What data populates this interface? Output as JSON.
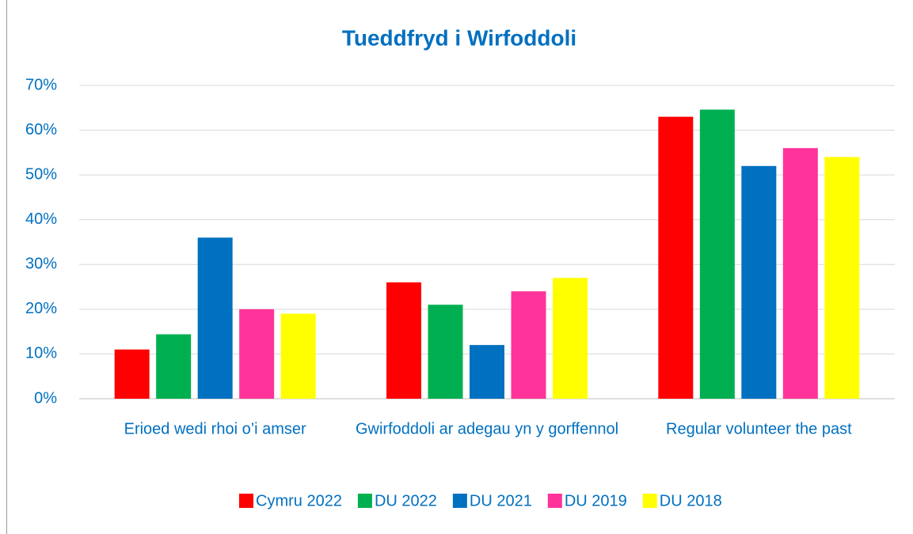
{
  "chart_data": {
    "type": "bar",
    "title": "Tueddfryd i Wirfoddoli",
    "categories": [
      "Erioed wedi rhoi o’i amser",
      "Gwirfoddoli ar adegau yn y gorffennol",
      "Regular volunteer  the past"
    ],
    "series": [
      {
        "name": "Cymru 2022",
        "color": "#ff0000",
        "values": [
          11,
          26,
          63
        ]
      },
      {
        "name": "DU 2022",
        "color": "#00b050",
        "values": [
          14.4,
          21,
          64.6
        ]
      },
      {
        "name": "DU 2021",
        "color": "#0070c0",
        "values": [
          36,
          12,
          52
        ]
      },
      {
        "name": "DU 2019",
        "color": "#ff3399",
        "values": [
          20,
          24,
          56
        ]
      },
      {
        "name": "DU 2018",
        "color": "#ffff00",
        "values": [
          19,
          27,
          54
        ]
      }
    ],
    "ylim": [
      0,
      70
    ],
    "yticks": [
      {
        "value": 0,
        "label": "0%"
      },
      {
        "value": 10,
        "label": "10%"
      },
      {
        "value": 20,
        "label": "20%"
      },
      {
        "value": 30,
        "label": "30%"
      },
      {
        "value": 40,
        "label": "40%"
      },
      {
        "value": 50,
        "label": "50%"
      },
      {
        "value": 60,
        "label": "60%"
      },
      {
        "value": 70,
        "label": "70%"
      }
    ],
    "grid": true,
    "legend": "bottom"
  }
}
